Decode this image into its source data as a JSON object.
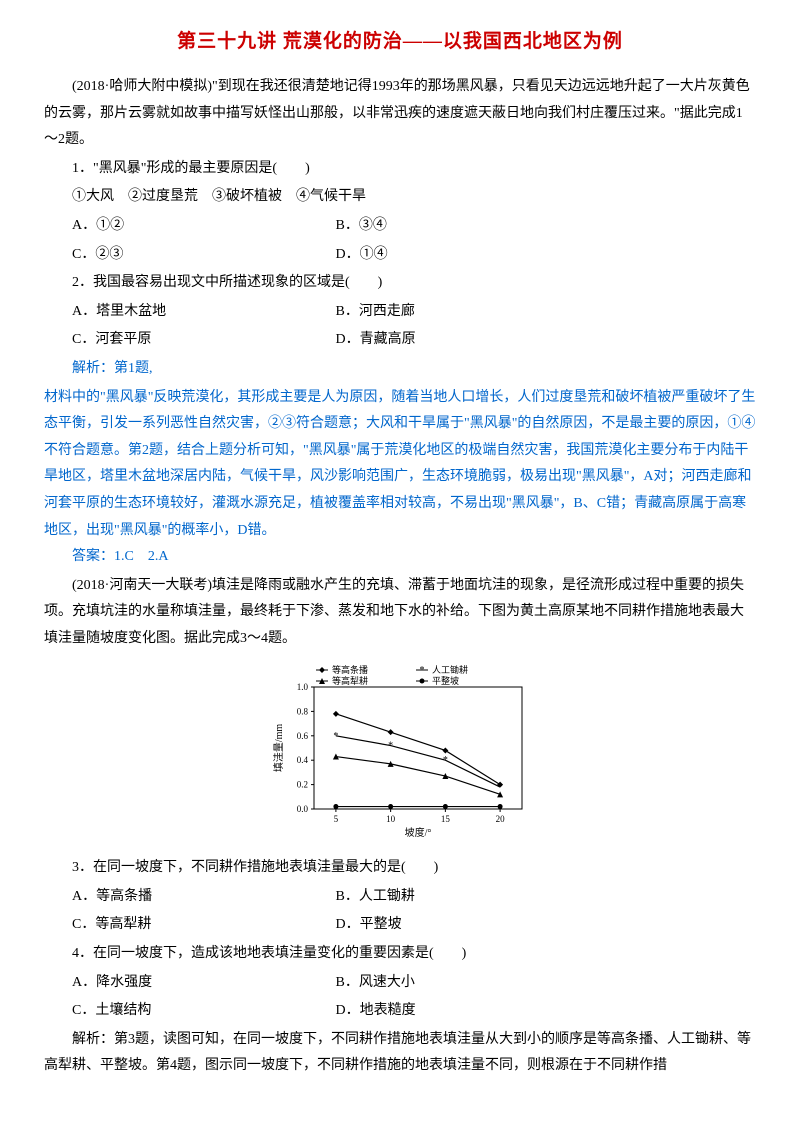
{
  "title": "第三十九讲 荒漠化的防治——以我国西北地区为例",
  "intro1": "(2018·哈师大附中模拟)\"到现在我还很清楚地记得1993年的那场黑风暴，只看见天边远远地升起了一大片灰黄色的云雾，那片云雾就如故事中描写妖怪出山那般，以非常迅疾的速度遮天蔽日地向我们村庄覆压过来。\"据此完成1～2题。",
  "q1": {
    "stem": "1．\"黑风暴\"形成的最主要原因是(　　)",
    "choices_line": "①大风　②过度垦荒　③破坏植被　④气候干旱",
    "A": "A．①②",
    "B": "B．③④",
    "C": "C．②③",
    "D": "D．①④"
  },
  "q2": {
    "stem": "2．我国最容易出现文中所描述现象的区域是(　　)",
    "A": "A．塔里木盆地",
    "B": "B．河西走廊",
    "C": "C．河套平原",
    "D": "D．青藏高原"
  },
  "ans1_label": "解析：第1题,",
  "ans1_body": "材料中的\"黑风暴\"反映荒漠化，其形成主要是人为原因，随着当地人口增长，人们过度垦荒和破坏植被严重破坏了生态平衡，引发一系列恶性自然灾害，②③符合题意；大风和干旱属于\"黑风暴\"的自然原因，不是最主要的原因，①④不符合题意。第2题，结合上题分析可知，\"黑风暴\"属于荒漠化地区的极端自然灾害，我国荒漠化主要分布于内陆干旱地区，塔里木盆地深居内陆，气候干旱，风沙影响范围广，生态环境脆弱，极易出现\"黑风暴\"，A对；河西走廊和河套平原的生态环境较好，灌溉水源充足，植被覆盖率相对较高，不易出现\"黑风暴\"，B、C错；青藏高原属于高寒地区，出现\"黑风暴\"的概率小，D错。",
  "ans1_final": "答案：1.C　2.A",
  "intro2": "(2018·河南天一大联考)填洼是降雨或融水产生的充填、滞蓄于地面坑洼的现象，是径流形成过程中重要的损失项。充填坑洼的水量称填洼量，最终耗于下渗、蒸发和地下水的补给。下图为黄土高原某地不同耕作措施地表最大填洼量随坡度变化图。据此完成3～4题。",
  "chart": {
    "type": "line",
    "xlabel": "坡度/°",
    "ylabel": "填洼量/mm",
    "xlim": [
      3,
      22
    ],
    "ylim": [
      0,
      1.0
    ],
    "xticks": [
      5,
      10,
      15,
      20
    ],
    "yticks": [
      0,
      0.2,
      0.4,
      0.6,
      0.8,
      1.0
    ],
    "background": "#ffffff",
    "axis_color": "#000000",
    "grid_color": "#cccccc",
    "label_fontsize": 11,
    "legend_position": "top",
    "series": [
      {
        "name": "等高条播",
        "marker": "diamond",
        "color": "#000000",
        "x": [
          5,
          10,
          15,
          20
        ],
        "y": [
          0.78,
          0.63,
          0.48,
          0.2
        ]
      },
      {
        "name": "人工锄耕",
        "marker": "star",
        "color": "#000000",
        "x": [
          5,
          10,
          15,
          20
        ],
        "y": [
          0.6,
          0.52,
          0.4,
          0.18
        ]
      },
      {
        "name": "等高犁耕",
        "marker": "triangle",
        "color": "#000000",
        "x": [
          5,
          10,
          15,
          20
        ],
        "y": [
          0.43,
          0.37,
          0.27,
          0.12
        ]
      },
      {
        "name": "平整坡",
        "marker": "circle",
        "color": "#000000",
        "x": [
          5,
          10,
          15,
          20
        ],
        "y": [
          0.02,
          0.02,
          0.02,
          0.02
        ]
      }
    ]
  },
  "q3": {
    "stem": "3．在同一坡度下，不同耕作措施地表填洼量最大的是(　　)",
    "A": "A．等高条播",
    "B": "B．人工锄耕",
    "C": "C．等高犁耕",
    "D": "D．平整坡"
  },
  "q4": {
    "stem": "4．在同一坡度下，造成该地地表填洼量变化的重要因素是(　　)",
    "A": "A．降水强度",
    "B": "B．风速大小",
    "C": "C．土壤结构",
    "D": "D．地表糙度"
  },
  "ans2": "解析：第3题，读图可知，在同一坡度下，不同耕作措施地表填洼量从大到小的顺序是等高条播、人工锄耕、等高犁耕、平整坡。第4题，图示同一坡度下，不同耕作措施的地表填洼量不同，则根源在于不同耕作措"
}
